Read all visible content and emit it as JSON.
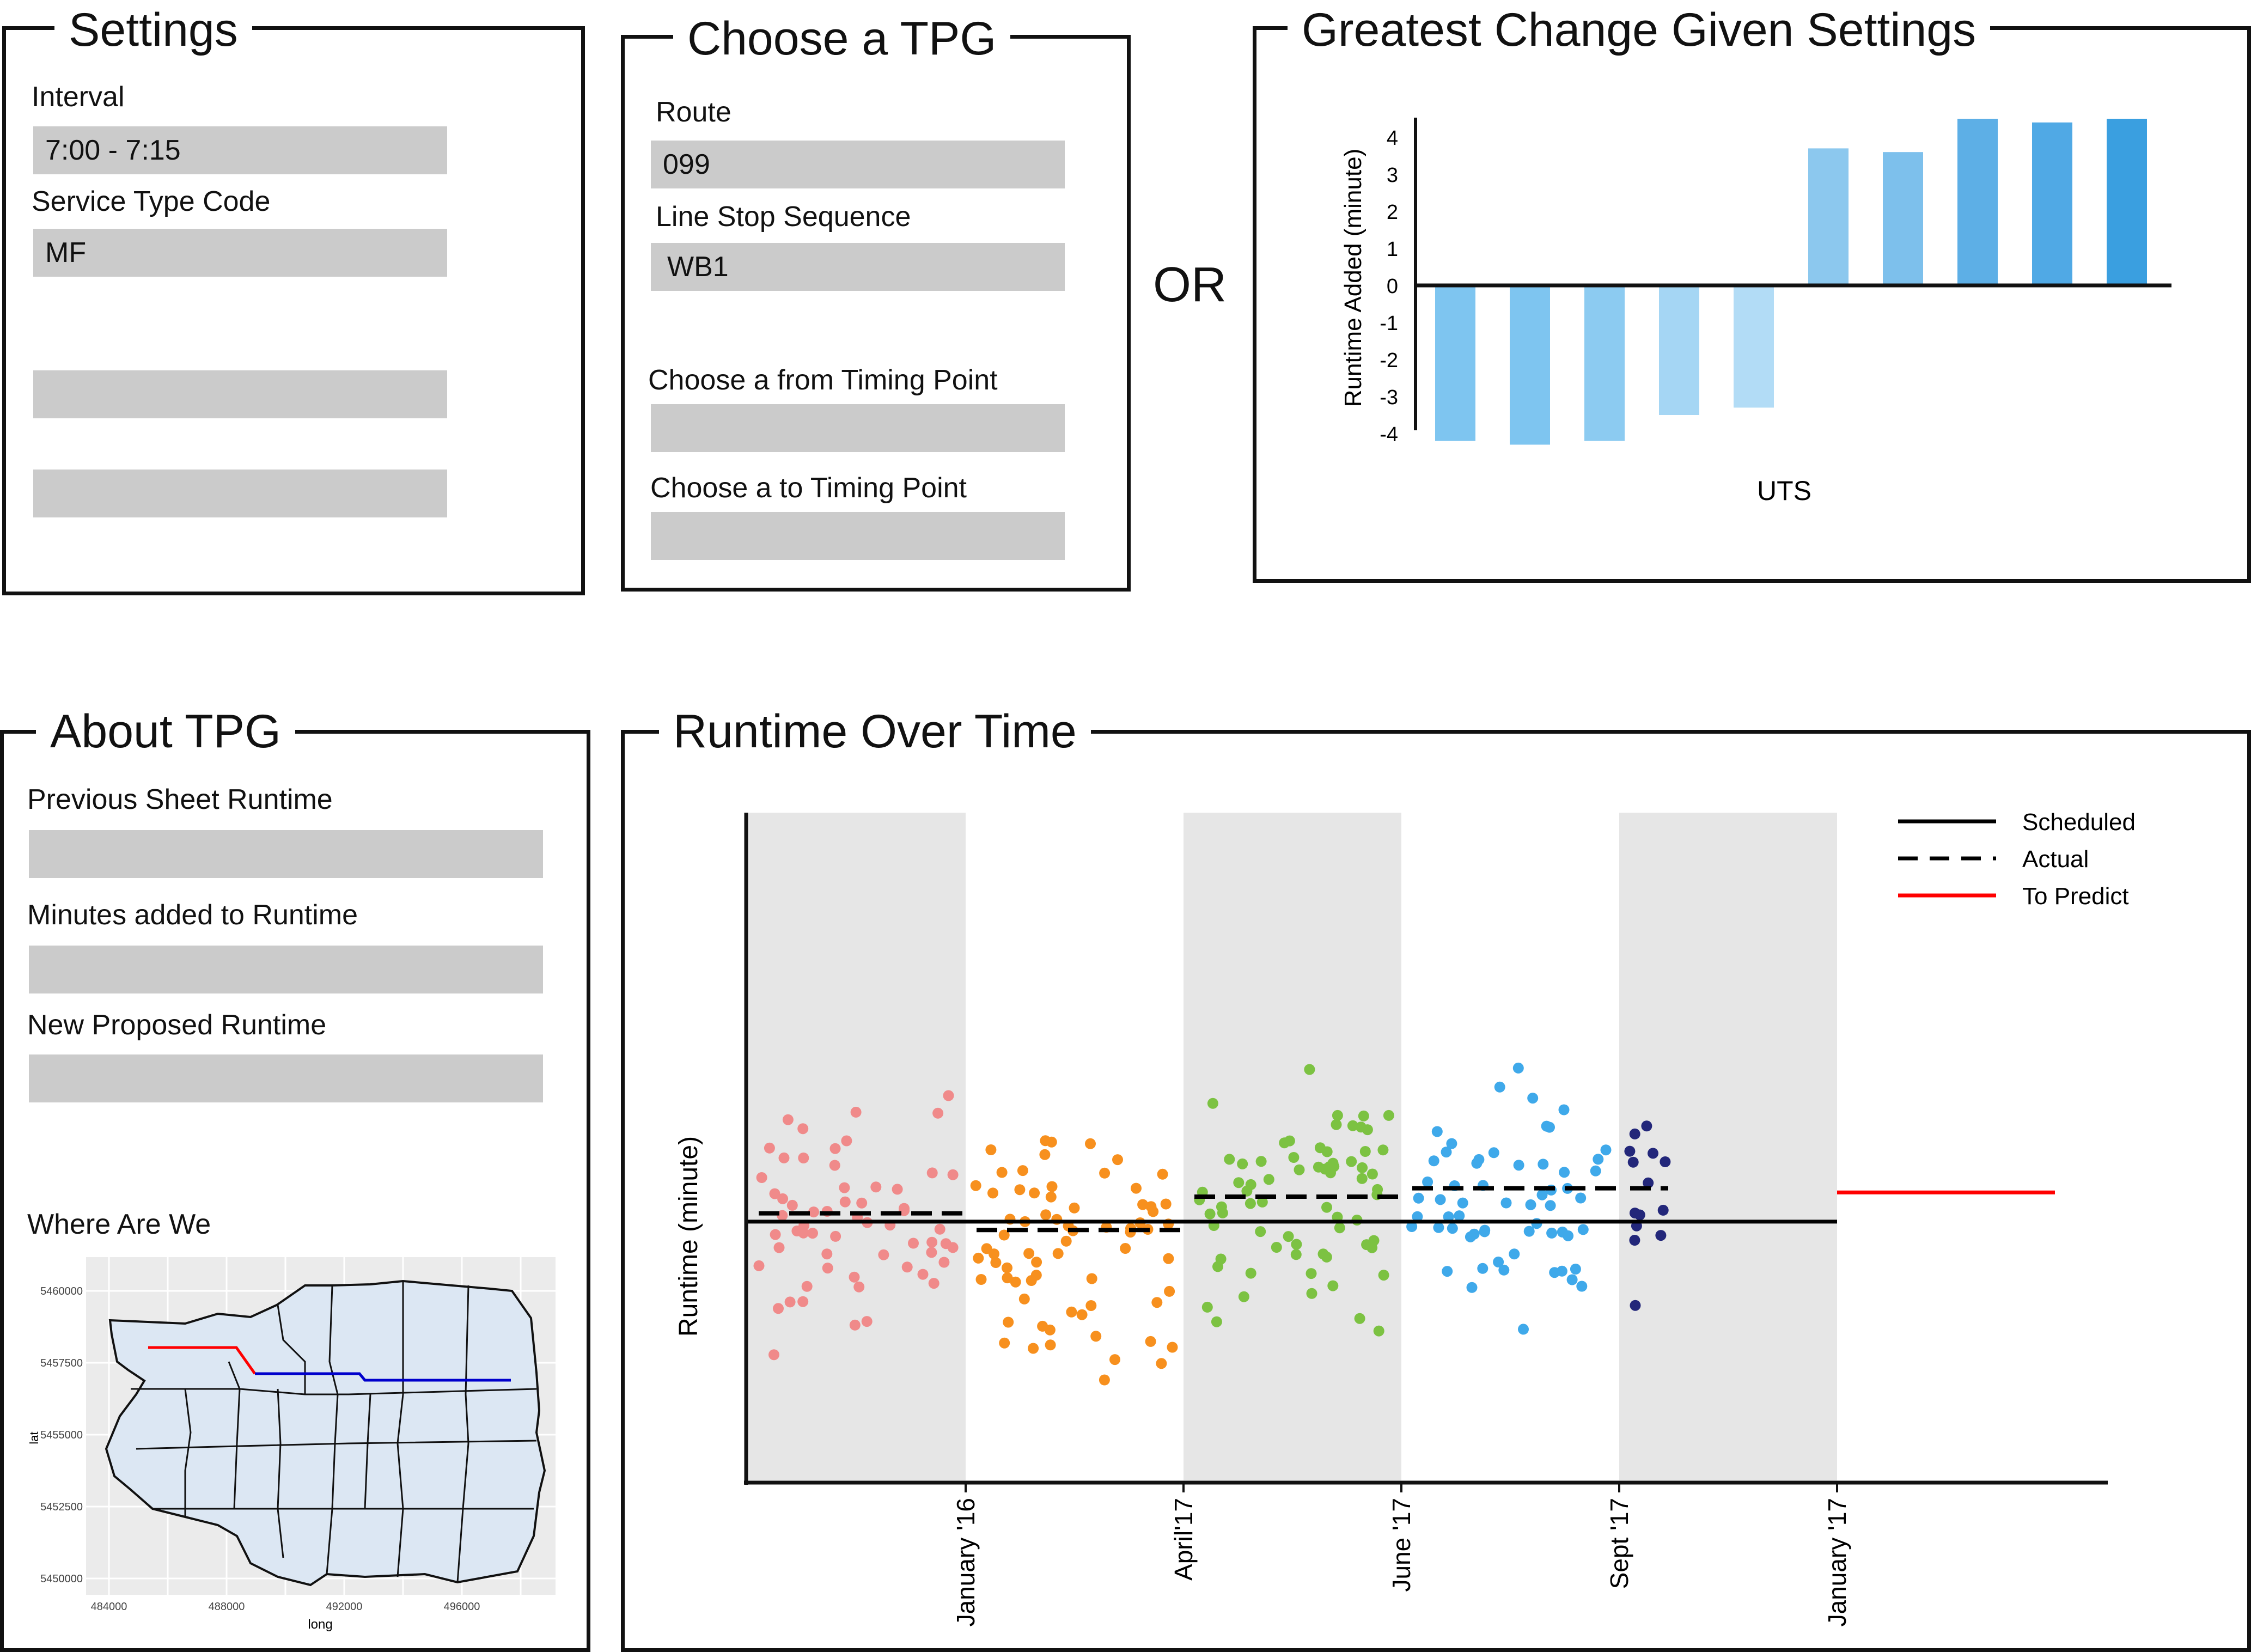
{
  "settings": {
    "title": "Settings",
    "interval_label": "Interval",
    "interval_value": "7:00 - 7:15",
    "service_type_label": "Service Type Code",
    "service_type_value": "MF",
    "extra_field_1_value": "",
    "extra_field_2_value": ""
  },
  "choose_tpg": {
    "title": "Choose a TPG",
    "route_label": "Route",
    "route_value": "099",
    "line_stop_label": "Line Stop Sequence",
    "line_stop_value": "WB1",
    "from_label": "Choose a from Timing Point",
    "from_value": "",
    "to_label": "Choose a to Timing Point",
    "to_value": ""
  },
  "or_text": "OR",
  "greatest_change": {
    "title": "Greatest Change Given Settings",
    "chart_data": {
      "type": "bar",
      "ylabel": "Runtime Added (minute)",
      "xlabel": "UTS",
      "yticks": [
        "4",
        "3",
        "2",
        "1",
        "0",
        "-1",
        "-2",
        "-3",
        "-4"
      ],
      "ylim": [
        -4,
        4.5
      ],
      "values": [
        -4.2,
        -4.3,
        -4.2,
        -3.5,
        -3.3,
        3.7,
        3.6,
        4.5,
        4.4,
        4.5
      ],
      "colors": [
        "#7ec5f0",
        "#7ec5f0",
        "#8ccbf1",
        "#a5d6f4",
        "#b2dcf6",
        "#8cc8ee",
        "#7dc0ec",
        "#5dafe6",
        "#50a9e5",
        "#3a9fe0"
      ]
    }
  },
  "about_tpg": {
    "title": "About TPG",
    "prev_label": "Previous Sheet Runtime",
    "prev_value": "",
    "minutes_label": "Minutes added to Runtime",
    "minutes_value": "",
    "new_label": "New Proposed Runtime",
    "new_value": "",
    "where_label": "Where Are We",
    "map": {
      "ylabel": "lat",
      "xlabel": "long",
      "yticks": [
        "5460000",
        "5457500",
        "5455000",
        "5452500",
        "5450000"
      ],
      "xticks": [
        "484000",
        "488000",
        "492000",
        "496000"
      ],
      "colors": {
        "background": "#ebebeb",
        "region": "#dce7f3",
        "route_red": "#ff0000",
        "route_blue": "#0000cc"
      }
    }
  },
  "runtime_over_time": {
    "title": "Runtime Over Time",
    "chart_data": {
      "type": "scatter",
      "ylabel": "Runtime (minute)",
      "xticks": [
        "January '16",
        "April'17",
        "June '17",
        "Sept '17",
        "January '17"
      ],
      "legend": [
        {
          "label": "Scheduled",
          "style": "solid",
          "color": "#000000"
        },
        {
          "label": "Actual",
          "style": "dashed",
          "color": "#000000"
        },
        {
          "label": "To Predict",
          "style": "solid",
          "color": "#ff0000"
        }
      ],
      "legend_position": "top-right",
      "periods": [
        {
          "color": "#f08a8a",
          "shaded": true,
          "actual": 6.2,
          "n": 60
        },
        {
          "color": "#f7901e",
          "shaded": false,
          "actual": 6.0,
          "n": 70
        },
        {
          "color": "#7cc242",
          "shaded": true,
          "actual": 6.4,
          "n": 70
        },
        {
          "color": "#3fa9ea",
          "shaded": false,
          "actual": 6.5,
          "n": 60
        },
        {
          "color": "#23277a",
          "shaded": true,
          "actual": 6.5,
          "n": 14
        }
      ],
      "scheduled": 6.1,
      "to_predict": 6.45,
      "ylim": [
        3,
        11
      ]
    }
  }
}
